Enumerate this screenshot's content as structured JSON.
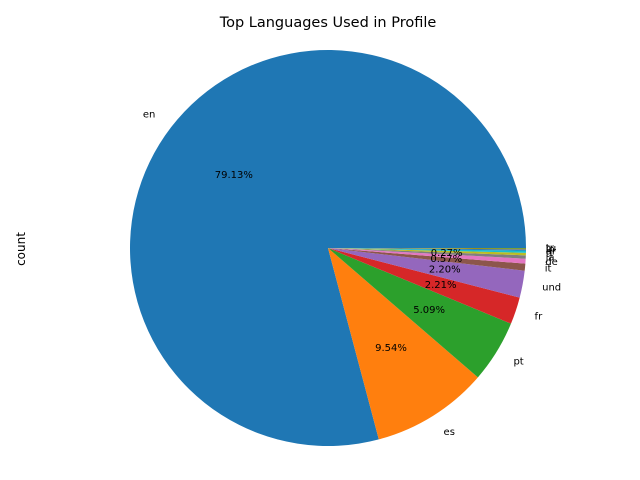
{
  "chart_data": {
    "type": "pie",
    "title": "Top Languages Used in Profile",
    "xlabel": "",
    "ylabel": "count",
    "legend": "none",
    "grid": false,
    "start_angle_deg": 0,
    "direction": "counterclockwise",
    "categories": [
      "en",
      "es",
      "pt",
      "fr",
      "und",
      "it",
      "de",
      "ja",
      "tl",
      "ar",
      "in",
      "ru",
      "tr"
    ],
    "values": [
      79.13,
      9.54,
      5.09,
      2.21,
      2.2,
      0.57,
      0.4,
      0.27,
      0.2,
      0.18,
      0.1,
      0.06,
      0.05
    ],
    "percent_labels": [
      "79.13%",
      "9.54%",
      "5.09%",
      "2.21%",
      "2.20%",
      "0.57%",
      "",
      "0.27%",
      "",
      "",
      "",
      "",
      ""
    ],
    "colors": [
      "#1f77b4",
      "#ff7f0e",
      "#2ca02c",
      "#d62728",
      "#9467bd",
      "#8c564b",
      "#e377c2",
      "#7f7f7f",
      "#bcbd22",
      "#17becf",
      "#1f77b4",
      "#ff7f0e",
      "#2ca02c"
    ]
  }
}
